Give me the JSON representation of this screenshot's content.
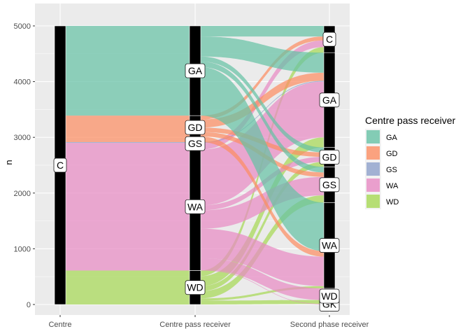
{
  "chart_data": {
    "type": "alluvial",
    "ylabel": "n",
    "ylim": [
      0,
      5200
    ],
    "y_ticks": [
      0,
      1000,
      2000,
      3000,
      4000,
      5000
    ],
    "axes": [
      "Centre",
      "Centre pass receiver",
      "Second phase receiver"
    ],
    "legend": {
      "title": "Centre pass receiver",
      "position": "right",
      "entries": [
        {
          "name": "GA",
          "color": "#66C2A5"
        },
        {
          "name": "GD",
          "color": "#FC8D62"
        },
        {
          "name": "GS",
          "color": "#8DA0CB"
        },
        {
          "name": "WA",
          "color": "#E78AC3"
        },
        {
          "name": "WD",
          "color": "#A6D854"
        }
      ]
    },
    "strata": [
      {
        "axis": 0,
        "label": "C",
        "ymin": 0,
        "ymax": 5000
      },
      {
        "axis": 1,
        "label": "WD",
        "ymin": 0,
        "ymax": 610
      },
      {
        "axis": 1,
        "label": "WA",
        "ymin": 610,
        "ymax": 2900
      },
      {
        "axis": 1,
        "label": "GS",
        "ymin": 2900,
        "ymax": 2915
      },
      {
        "axis": 1,
        "label": "GD",
        "ymin": 2915,
        "ymax": 3390
      },
      {
        "axis": 1,
        "label": "GA",
        "ymin": 3390,
        "ymax": 5000
      },
      {
        "axis": 2,
        "label": "GK",
        "ymin": 0,
        "ymax": 10
      },
      {
        "axis": 2,
        "label": "WD",
        "ymin": 10,
        "ymax": 290
      },
      {
        "axis": 2,
        "label": "WA",
        "ymin": 290,
        "ymax": 1830
      },
      {
        "axis": 2,
        "label": "GS",
        "ymin": 1830,
        "ymax": 2470
      },
      {
        "axis": 2,
        "label": "GD",
        "ymin": 2470,
        "ymax": 2820
      },
      {
        "axis": 2,
        "label": "GA",
        "ymin": 2820,
        "ymax": 4520
      },
      {
        "axis": 2,
        "label": "C",
        "ymin": 4520,
        "ymax": 5000
      }
    ],
    "flows": [
      {
        "from": "C",
        "to": "GA",
        "value": 1610
      },
      {
        "from": "C",
        "to": "GD",
        "value": 475
      },
      {
        "from": "C",
        "to": "GS",
        "value": 15
      },
      {
        "from": "C",
        "to": "WA",
        "value": 2290
      },
      {
        "from": "C",
        "to": "WD",
        "value": 610
      },
      {
        "from": "WD",
        "to": "GK",
        "value": 0,
        "group": "WD"
      },
      {
        "from": "WD",
        "to": "WD",
        "value": 70,
        "group": "WD"
      },
      {
        "from": "WD",
        "to": "WA",
        "value": 40,
        "group": "WD"
      },
      {
        "from": "WD",
        "to": "GS",
        "value": 130,
        "group": "WD"
      },
      {
        "from": "WD",
        "to": "GD",
        "value": 90,
        "group": "WD"
      },
      {
        "from": "WD",
        "to": "GA",
        "value": 180,
        "group": "WD"
      },
      {
        "from": "WD",
        "to": "C",
        "value": 100,
        "group": "WD"
      },
      {
        "from": "WA",
        "to": "GK",
        "value": 10,
        "group": "WA"
      },
      {
        "from": "WA",
        "to": "WD",
        "value": 210,
        "group": "WA"
      },
      {
        "from": "WA",
        "to": "WA",
        "value": 530,
        "group": "WA"
      },
      {
        "from": "WA",
        "to": "GS",
        "value": 330,
        "group": "WA"
      },
      {
        "from": "WA",
        "to": "GD",
        "value": 90,
        "group": "WA"
      },
      {
        "from": "WA",
        "to": "GA",
        "value": 1000,
        "group": "WA"
      },
      {
        "from": "WA",
        "to": "C",
        "value": 120,
        "group": "WA"
      },
      {
        "from": "GS",
        "to": "GA",
        "value": 15,
        "group": "GS"
      },
      {
        "from": "GD",
        "to": "WA",
        "value": 100,
        "group": "GD"
      },
      {
        "from": "GD",
        "to": "GS",
        "value": 80,
        "group": "GD"
      },
      {
        "from": "GD",
        "to": "GD",
        "value": 80,
        "group": "GD"
      },
      {
        "from": "GD",
        "to": "GA",
        "value": 145,
        "group": "GD"
      },
      {
        "from": "GD",
        "to": "C",
        "value": 70,
        "group": "GD"
      },
      {
        "from": "GA",
        "to": "WD",
        "value": 0,
        "group": "GA"
      },
      {
        "from": "GA",
        "to": "WA",
        "value": 870,
        "group": "GA"
      },
      {
        "from": "GA",
        "to": "GS",
        "value": 100,
        "group": "GA"
      },
      {
        "from": "GA",
        "to": "GD",
        "value": 90,
        "group": "GA"
      },
      {
        "from": "GA",
        "to": "GA",
        "value": 360,
        "group": "GA"
      },
      {
        "from": "GA",
        "to": "C",
        "value": 190,
        "group": "GA"
      }
    ]
  }
}
